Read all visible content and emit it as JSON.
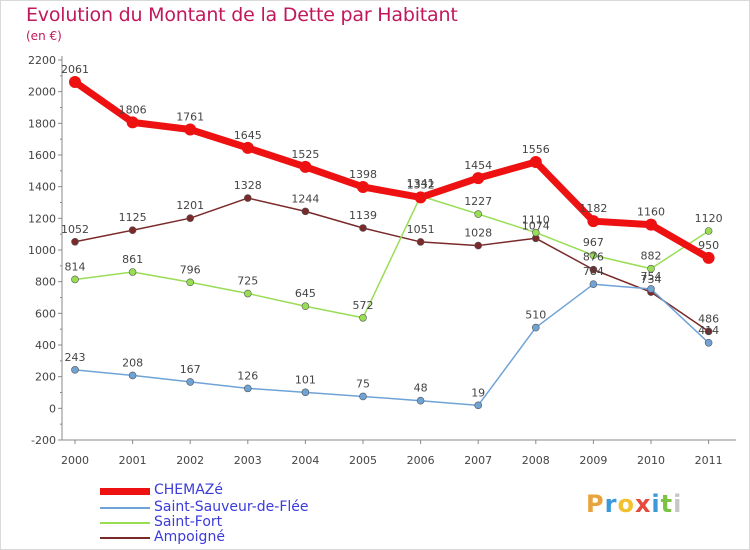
{
  "title": "Evolution du Montant de la Dette par Habitant",
  "subtitle": "(en €)",
  "logo": {
    "letters": [
      "P",
      "r",
      "o",
      "x",
      "i",
      "t",
      "i"
    ],
    "colors": [
      "#e8a33c",
      "#3a9ad9",
      "#f2c12e",
      "#e64a3c",
      "#3a9ad9",
      "#7cc243",
      "#c6c6c6"
    ]
  },
  "chart_data": {
    "type": "line",
    "x": [
      "2000",
      "2001",
      "2002",
      "2003",
      "2004",
      "2005",
      "2006",
      "2007",
      "2008",
      "2009",
      "2010",
      "2011"
    ],
    "ylim": [
      -200,
      2200
    ],
    "yticks": [
      "-200",
      "0",
      "200",
      "400",
      "600",
      "800",
      "1000",
      "1200",
      "1400",
      "1600",
      "1800",
      "2000",
      "2200"
    ],
    "grid": false,
    "legend_position": "bottom-left",
    "series": [
      {
        "name": "CHEMAZé",
        "color": "#ee1111",
        "width": 7,
        "values": [
          2061,
          1806,
          1761,
          1645,
          1525,
          1398,
          1332,
          1454,
          1556,
          1182,
          1160,
          950
        ],
        "labels": [
          "2061",
          "1806",
          "1761",
          "1645",
          "1525",
          "1398",
          "1332",
          "1454",
          "1556",
          "1182",
          "1160",
          "950"
        ]
      },
      {
        "name": "Saint-Sauveur-de-Flée",
        "color": "#6fa3d6",
        "width": 1.5,
        "values": [
          243,
          208,
          167,
          126,
          101,
          75,
          48,
          19,
          510,
          784,
          754,
          414
        ],
        "labels": [
          "243",
          "208",
          "167",
          "126",
          "101",
          "75",
          "48",
          "19",
          "510",
          "784",
          "754",
          "414"
        ]
      },
      {
        "name": "Saint-Fort",
        "color": "#99dd55",
        "width": 1.5,
        "values": [
          814,
          861,
          796,
          725,
          645,
          572,
          1341,
          1227,
          1110,
          967,
          882,
          1120
        ],
        "labels": [
          "814",
          "861",
          "796",
          "725",
          "645",
          "572",
          "1341",
          "1227",
          "1110",
          "967",
          "882",
          "1120"
        ]
      },
      {
        "name": "Ampoigné",
        "color": "#7a2a2a",
        "width": 1.5,
        "values": [
          1052,
          1125,
          1201,
          1328,
          1244,
          1139,
          1051,
          1028,
          1074,
          876,
          734,
          486
        ],
        "labels": [
          "1052",
          "1125",
          "1201",
          "1328",
          "1244",
          "1139",
          "1051",
          "1028",
          "1074",
          "876",
          "734",
          "486"
        ]
      }
    ]
  }
}
